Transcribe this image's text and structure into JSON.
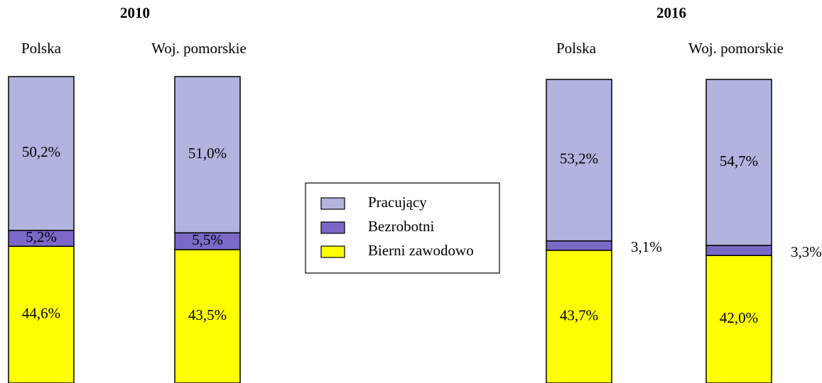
{
  "chart_data": {
    "type": "bar",
    "stacked": true,
    "groups": [
      {
        "title": "2010",
        "categories": [
          "Polska",
          "Woj. pomorskie"
        ]
      },
      {
        "title": "2016",
        "categories": [
          "Polska",
          "Woj. pomorskie"
        ]
      }
    ],
    "ylim": [
      0,
      100
    ],
    "series": [
      {
        "name": "Pracujący",
        "color": "#b3b3e0",
        "values": [
          50.2,
          51.0,
          53.2,
          54.7
        ],
        "value_labels": [
          "50,2%",
          "51,0%",
          "53,2%",
          "54,7%"
        ]
      },
      {
        "name": "Bezrobotni",
        "color": "#7b68c8",
        "values": [
          5.2,
          5.5,
          3.1,
          3.3
        ],
        "value_labels": [
          "5,2%",
          "5,5%",
          "3,1%",
          "3,3%"
        ]
      },
      {
        "name": "Bierni zawodowo",
        "color": "#ffff00",
        "values": [
          44.6,
          43.5,
          43.7,
          42.0
        ],
        "value_labels": [
          "44,6%",
          "43,5%",
          "43,7%",
          "42,0%"
        ]
      }
    ]
  }
}
